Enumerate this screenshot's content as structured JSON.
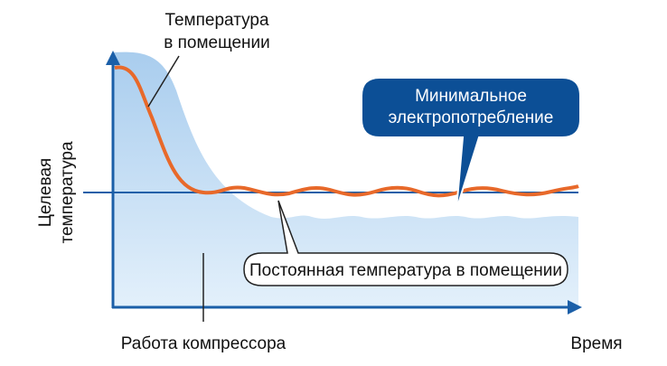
{
  "room_temperature_label": [
    "Температура",
    "в помещении"
  ],
  "min_power_label": [
    "Минимальное",
    "электропотребление"
  ],
  "target_temperature_label": [
    "Целевая",
    "температура"
  ],
  "constant_temperature_label": "Постоянная температура в помещении",
  "compressor_label": "Работа компрессора",
  "time_label": "Время"
}
